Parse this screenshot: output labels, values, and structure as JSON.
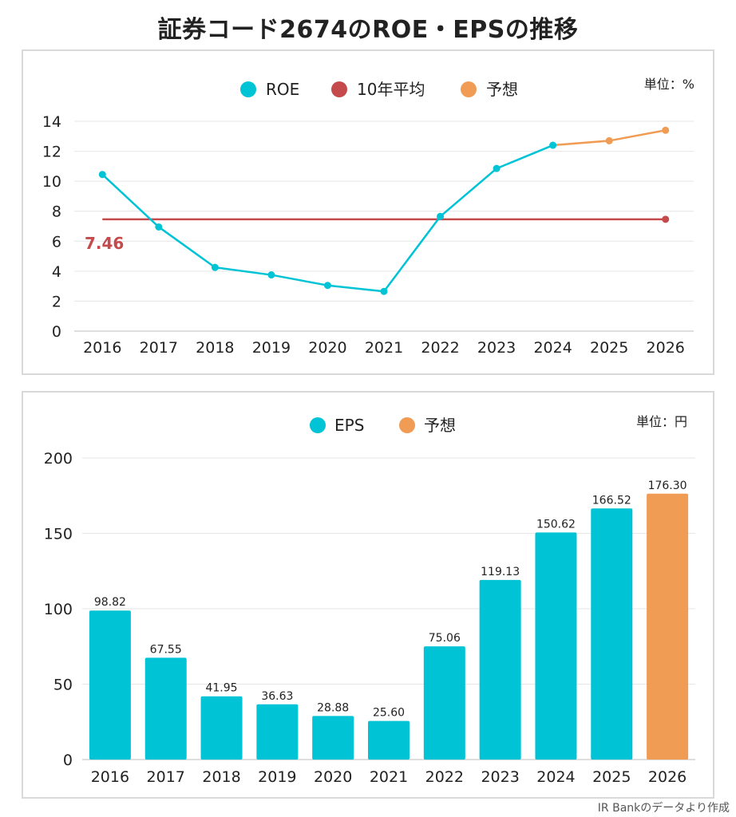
{
  "page_title": "証券コード2674のROE・EPSの推移",
  "footer_credit": "IR Bankのデータより作成",
  "colors": {
    "actual": "#00c3d6",
    "average": "#c44a4c",
    "forecast": "#f09c55",
    "grid": "#e6e6e6",
    "axis": "#bdbdbd"
  },
  "chart_data": [
    {
      "type": "line",
      "title": "ROE",
      "unit_label": "単位：%",
      "legend": [
        "ROE",
        "10年平均",
        "予想"
      ],
      "categories": [
        "2016",
        "2017",
        "2018",
        "2019",
        "2020",
        "2021",
        "2022",
        "2023",
        "2024",
        "2025",
        "2026"
      ],
      "ylim": [
        0,
        14
      ],
      "yticks": [
        0,
        2,
        4,
        6,
        8,
        10,
        12,
        14
      ],
      "series": [
        {
          "name": "ROE",
          "values": [
            10.45,
            6.95,
            4.25,
            3.75,
            3.05,
            2.65,
            7.65,
            10.85,
            12.4,
            null,
            null
          ]
        },
        {
          "name": "予想",
          "values": [
            null,
            null,
            null,
            null,
            null,
            null,
            null,
            null,
            12.4,
            12.7,
            13.4
          ]
        },
        {
          "name": "10年平均",
          "values": [
            7.46,
            7.46,
            7.46,
            7.46,
            7.46,
            7.46,
            7.46,
            7.46,
            7.46,
            7.46,
            7.46
          ]
        }
      ],
      "average_label": "7.46",
      "forecast_start_index": 9
    },
    {
      "type": "bar",
      "title": "EPS",
      "unit_label": "単位：円",
      "legend": [
        "EPS",
        "予想"
      ],
      "categories": [
        "2016",
        "2017",
        "2018",
        "2019",
        "2020",
        "2021",
        "2022",
        "2023",
        "2024",
        "2025",
        "2026"
      ],
      "ylim": [
        0,
        200
      ],
      "yticks": [
        0,
        50,
        100,
        150,
        200
      ],
      "values": [
        98.82,
        67.55,
        41.95,
        36.63,
        28.88,
        25.6,
        75.06,
        119.13,
        150.62,
        166.52,
        176.3
      ],
      "value_labels": [
        "98.82",
        "67.55",
        "41.95",
        "36.63",
        "28.88",
        "25.60",
        "75.06",
        "119.13",
        "150.62",
        "166.52",
        "176.30"
      ],
      "forecast_start_index": 10
    }
  ]
}
